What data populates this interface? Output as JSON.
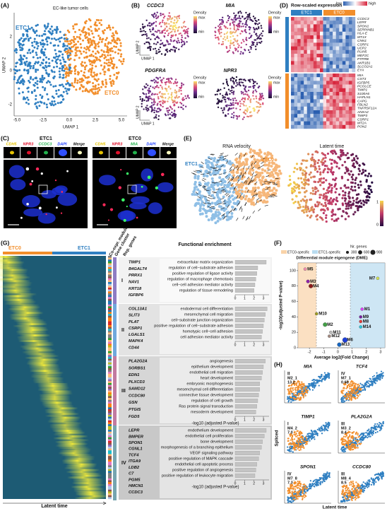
{
  "panels": {
    "A": {
      "letter": "(A)",
      "title": "EC-like tumor cells",
      "x_label": "UMAP 1",
      "y_label": "UMAP 2",
      "xticks": [
        "-5.0",
        "-2.5",
        "0.0",
        "2.5",
        "5.0"
      ],
      "yticks": [
        "-2",
        "0",
        "2"
      ],
      "groups": [
        "ETC1",
        "ETC0"
      ]
    },
    "B": {
      "letter": "(B)",
      "genes": [
        "CCDC3",
        "MIA",
        "PDGFRA",
        "NPR3"
      ],
      "x_label": "UMAP 1",
      "y_label": "UMAP 2",
      "legend": {
        "title": "Density",
        "max": "max",
        "min": "min"
      }
    },
    "C": {
      "letter": "(C)",
      "samples": [
        {
          "name": "ETC1",
          "channels": [
            "CDH5",
            "NPR3",
            "CCDC3",
            "DAPI",
            "Merge"
          ]
        },
        {
          "name": "ETC0",
          "channels": [
            "CDH5",
            "NPR3",
            "MIA",
            "DAPI",
            "Merge"
          ]
        }
      ]
    },
    "D": {
      "letter": "(D)",
      "title": "Row-scaled expression",
      "low": "low",
      "high": "high",
      "groups": [
        "ETC1",
        "ETC0"
      ],
      "genes_top": [
        "CCDC3",
        "LEPR",
        "SPON1",
        "SERPINB1",
        "HLA-E",
        "MT1X",
        "CNN1",
        "CSRP1",
        "UCP2",
        "PLIN5",
        "MEF2C",
        "PTPRB",
        "AKR1B1",
        "SLCO2A1",
        "EYA"
      ],
      "genes_bottom": [
        "MIA",
        "CST3",
        "IGFBP5",
        "PCOLCE",
        "TIMP1",
        "S100A6",
        "HAPLN1",
        "CAPG",
        "FBLN2",
        "TNFRSF12A",
        "ANXA2",
        "TIMP3",
        "CSRP1",
        "MT2A",
        "PON2"
      ]
    },
    "E": {
      "letter": "(E)",
      "velocity_title": "RNA velocity",
      "latent_title": "Latent time",
      "groups": [
        "ETC1",
        "ETC0"
      ],
      "colorbar": [
        "0",
        "1"
      ]
    },
    "F": {
      "letter": "(F)",
      "type": "scatter",
      "title": "Differential module eigengene (DME)",
      "legend": [
        "ETC0-specific",
        "ETC1-specific"
      ],
      "size_title": "Nr. genes",
      "sizes": [
        300,
        600,
        900
      ],
      "x_label": "Average log2(Fold Change)",
      "y_label": "-log10(adjusted P-value)",
      "xlim": [
        -2.8,
        3.3
      ],
      "ylim": [
        0,
        110
      ],
      "xticks": [
        -2,
        -1,
        0,
        1,
        2,
        3
      ],
      "yticks": [
        0,
        20,
        40,
        60,
        80,
        100
      ],
      "points": [
        {
          "name": "M5",
          "x": -2.3,
          "y": 102,
          "size": 300,
          "color": "#f48fb1"
        },
        {
          "name": "M7",
          "x": 2.8,
          "y": 90,
          "size": 300,
          "color": "#d4e157"
        },
        {
          "name": "M3",
          "x": -2.1,
          "y": 86,
          "size": 400,
          "color": "#8e24aa"
        },
        {
          "name": "M4",
          "x": -1.9,
          "y": 80,
          "size": 600,
          "color": "#8b1a1a"
        },
        {
          "name": "M1",
          "x": 1.7,
          "y": 50,
          "size": 300,
          "color": "#e040fb"
        },
        {
          "name": "M10",
          "x": -1.5,
          "y": 44,
          "size": 300,
          "color": "#9e9d24"
        },
        {
          "name": "M9",
          "x": 1.6,
          "y": 40,
          "size": 300,
          "color": "#7b1fa2"
        },
        {
          "name": "M8",
          "x": 1.6,
          "y": 34,
          "size": 300,
          "color": "#e53935"
        },
        {
          "name": "M2",
          "x": -0.9,
          "y": 30,
          "size": 600,
          "color": "#43a047"
        },
        {
          "name": "M14",
          "x": 1.6,
          "y": 27,
          "size": 300,
          "color": "#26c6da"
        },
        {
          "name": "M11",
          "x": -0.5,
          "y": 20,
          "size": 300,
          "color": "#bdbdbd"
        },
        {
          "name": "M12",
          "x": -0.6,
          "y": 15,
          "size": 300,
          "color": "#a1887f"
        },
        {
          "name": "M6",
          "x": 0.5,
          "y": 10,
          "size": 900,
          "color": "#1e3fd8"
        },
        {
          "name": "M13",
          "x": 0.1,
          "y": 4,
          "size": 600,
          "color": "#1565c0"
        }
      ]
    },
    "G": {
      "letter": "(G)",
      "groups": [
        "ETC0",
        "ETC1"
      ],
      "columns": [
        "Co-expr. module",
        "Gene cluster",
        "Rep. genes"
      ],
      "enrichment_title": "Functional enrichment",
      "x_label": "-log10 (adjusted P-value)",
      "xlim": [
        0,
        3.6
      ],
      "xticks": [
        0,
        1,
        2,
        3
      ],
      "time_label": "Latent time",
      "clusters": [
        {
          "name": "I",
          "genes": [
            "TIMP1",
            "B4GALT4",
            "PRRX1",
            "NAV1",
            "KRT18",
            "IGFBP6"
          ],
          "terms": [
            "extracellular matrix organization",
            "regulation of cell−substrate adhesion",
            "positive regulation of ligase activity",
            "regulation of macrophage chemotaxis",
            "cell−cell adhesion mediator activity",
            "regulation of tissue remodeling"
          ],
          "values": [
            3.3,
            2.4,
            2.3,
            2.2,
            2.1,
            2.0
          ]
        },
        {
          "name": "II",
          "genes": [
            "COL13A1",
            "SLIT3",
            "PLAT",
            "CSRP1",
            "LGALS1",
            "MAPK4",
            "CD44"
          ],
          "terms": [
            "endodermal cell differentiation",
            "mesenchymal cell migration",
            "cell−substrate junction organization",
            "positive regulation of cell−substrate adhesion",
            "homotypic cell−cell adhesion",
            "cell adhesion mediator activity"
          ],
          "values": [
            3.4,
            3.2,
            3.1,
            3.0,
            2.9,
            2.8
          ]
        },
        {
          "name": "III",
          "genes": [
            "PLA2G2A",
            "SORBS1",
            "EDN1",
            "PLXCD3",
            "SAMD12",
            "CCDC80",
            "GSN",
            "PTGIS",
            "FGD5"
          ],
          "terms": [
            "angiogenesis",
            "epithelium development",
            "endothelial cell migration",
            "heart development",
            "embryonic morphogenesis",
            "mesenchymal cell differentiation",
            "connective tissue development",
            "regulation of cell growth",
            "Ras protein signal transduction",
            "mesoderm development"
          ],
          "values": [
            3.2,
            3.0,
            2.9,
            2.8,
            2.6,
            2.6,
            2.5,
            2.4,
            2.3,
            2.2
          ]
        },
        {
          "name": "IV",
          "genes": [
            "LEPR",
            "BMPER",
            "SPON1",
            "CGNL1",
            "TCF4",
            "ITGA9",
            "LDB2",
            "C7",
            "PGM5",
            "HMCN1",
            "CCDC3"
          ],
          "terms": [
            "endothelium development",
            "endothelial cell proliferation",
            "bone development",
            "morphogenesis of a branching epithelium",
            "VEGF signaling pathway",
            "positive regulation of MAPK cascade",
            "endothelial cell apoptotic process",
            "positive regulation of angiogenesis",
            "positive regulation of leukocyte migration"
          ],
          "values": [
            3.3,
            3.1,
            2.9,
            2.8,
            2.6,
            2.5,
            2.3,
            2.2,
            2.1
          ]
        }
      ]
    },
    "H": {
      "letter": "(H)",
      "y_label": "Spliced",
      "x_label": "Latent time",
      "plots": [
        {
          "gene": "MIA",
          "cluster": "II",
          "module": "M2_1",
          "score": "13.2"
        },
        {
          "gene": "TCF4",
          "cluster": "IV",
          "module": "M7_1",
          "score": "0.68"
        },
        {
          "gene": "TIMP1",
          "cluster": "I",
          "module": "M4_2",
          "score": "7.0"
        },
        {
          "gene": "PLA2G2A",
          "cluster": "III",
          "module": "M3_2",
          "score": "8.4"
        },
        {
          "gene": "SPON1",
          "cluster": "IV",
          "module": "M7_8",
          "score": "7.3"
        },
        {
          "gene": "CCDC80",
          "cluster": "III",
          "module": "M8_4",
          "score": "8.5"
        }
      ]
    }
  }
}
